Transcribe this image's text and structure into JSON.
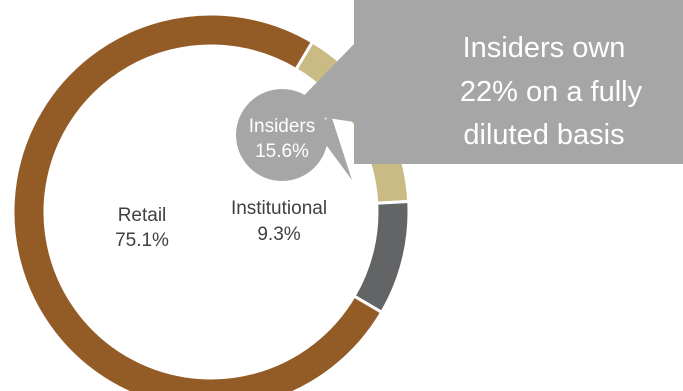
{
  "chart_data": {
    "type": "pie",
    "donut": true,
    "legend": "none",
    "slices": [
      {
        "label": "Retail",
        "value": 75.1,
        "value_label": "75.1%",
        "color": "#935b26"
      },
      {
        "label": "Insiders",
        "value": 15.6,
        "value_label": "15.6%",
        "color": "#c9bb83"
      },
      {
        "label": "Institutional",
        "value": 9.3,
        "value_label": "9.3%",
        "color": "#636466"
      }
    ],
    "annotation": {
      "lines": [
        "Insiders own",
        "22% on a fully",
        "diluted basis"
      ],
      "color": "#a6a6a6"
    },
    "insider_bubble_color": "#a6a6a6"
  }
}
